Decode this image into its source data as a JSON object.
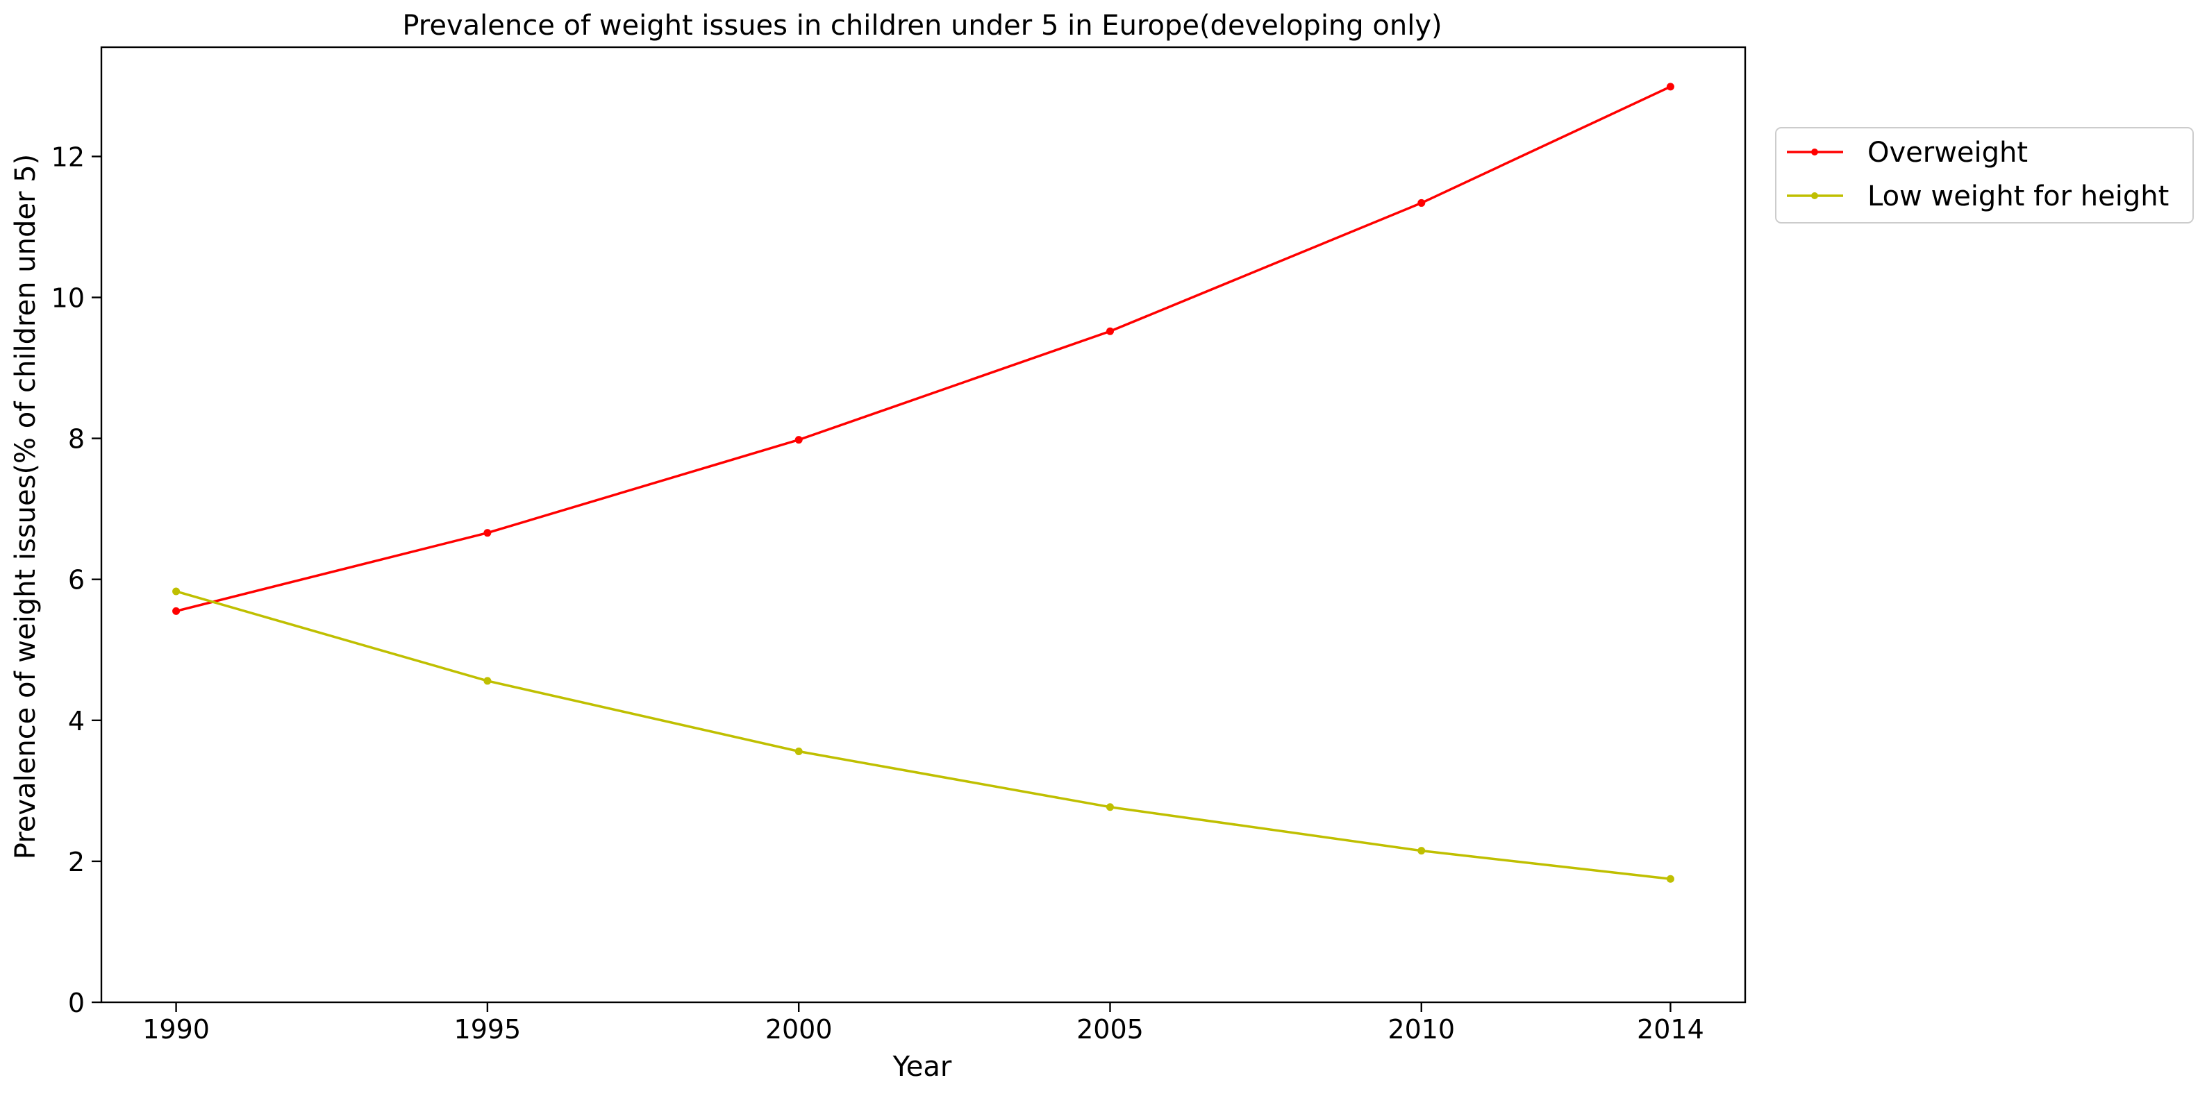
{
  "chart_data": {
    "type": "line",
    "title": "Prevalence of weight issues in children under 5 in Europe(developing only)",
    "xlabel": "Year",
    "ylabel": "Prevalence of weight issues(% of children under 5)",
    "x": [
      1990,
      1995,
      2000,
      2005,
      2010,
      2014
    ],
    "x_tick_labels": [
      "1990",
      "1995",
      "2000",
      "2005",
      "2010",
      "2014"
    ],
    "xlim": [
      1988.8,
      2015.2
    ],
    "y_ticks": [
      0,
      2,
      4,
      6,
      8,
      10,
      12
    ],
    "y_tick_labels": [
      "0",
      "2",
      "4",
      "6",
      "8",
      "10",
      "12"
    ],
    "ylim": [
      0,
      13.55
    ],
    "grid": false,
    "legend_position": "outside top-right",
    "series": [
      {
        "name": "Overweight",
        "color": "#ff0000",
        "values": [
          5.55,
          6.66,
          7.98,
          9.52,
          11.34,
          12.99
        ]
      },
      {
        "name": "Low weight for height",
        "color": "#bfbf00",
        "values": [
          5.83,
          4.56,
          3.56,
          2.77,
          2.15,
          1.75
        ]
      }
    ]
  }
}
